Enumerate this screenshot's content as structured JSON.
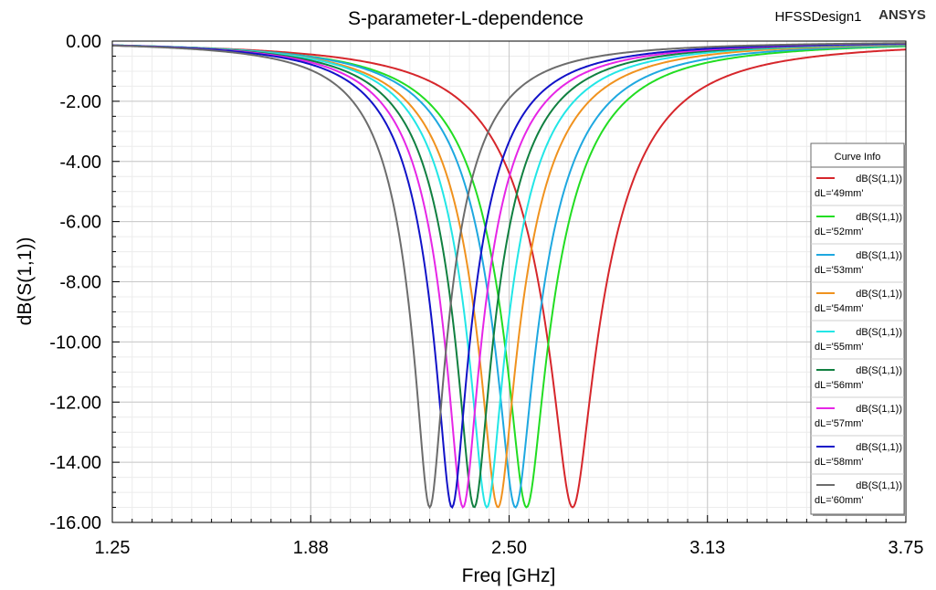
{
  "chart_data": {
    "type": "line",
    "title": "S-parameter-L-dependence",
    "design_label": "HFSSDesign1",
    "brand": "ANSYS",
    "xlabel": "Freq [GHz]",
    "ylabel": "dB(S(1,1))",
    "xlim": [
      1.25,
      3.75
    ],
    "ylim": [
      -16.0,
      0.0
    ],
    "x_ticks": [
      "1.25",
      "1.88",
      "2.50",
      "3.13",
      "3.75"
    ],
    "y_ticks": [
      "0.00",
      "-2.00",
      "-4.00",
      "-6.00",
      "-8.00",
      "-10.00",
      "-12.00",
      "-14.00",
      "-16.00"
    ],
    "grid": true,
    "legend": {
      "title": "Curve Info",
      "placement": "right"
    },
    "series": [
      {
        "name": "dB(S(1,1))",
        "param": "dL='49mm'",
        "color": "#d6262b",
        "min_freq": 2.7,
        "min_db": -15.5,
        "width": 0.275
      },
      {
        "name": "dB(S(1,1))",
        "param": "dL='52mm'",
        "color": "#22dd22",
        "min_freq": 2.555,
        "min_db": -15.5,
        "width": 0.245
      },
      {
        "name": "dB(S(1,1))",
        "param": "dL='53mm'",
        "color": "#1ea8e0",
        "min_freq": 2.52,
        "min_db": -15.5,
        "width": 0.235
      },
      {
        "name": "dB(S(1,1))",
        "param": "dL='54mm'",
        "color": "#f0921e",
        "min_freq": 2.465,
        "min_db": -15.5,
        "width": 0.225
      },
      {
        "name": "dB(S(1,1))",
        "param": "dL='55mm'",
        "color": "#22e6e6",
        "min_freq": 2.43,
        "min_db": -15.5,
        "width": 0.215
      },
      {
        "name": "dB(S(1,1))",
        "param": "dL='56mm'",
        "color": "#108040",
        "min_freq": 2.39,
        "min_db": -15.5,
        "width": 0.21
      },
      {
        "name": "dB(S(1,1))",
        "param": "dL='57mm'",
        "color": "#e626e6",
        "min_freq": 2.355,
        "min_db": -15.5,
        "width": 0.205
      },
      {
        "name": "dB(S(1,1))",
        "param": "dL='58mm'",
        "color": "#1212c8",
        "min_freq": 2.32,
        "min_db": -15.5,
        "width": 0.2
      },
      {
        "name": "dB(S(1,1))",
        "param": "dL='60mm'",
        "color": "#6c6c6c",
        "min_freq": 2.25,
        "min_db": -15.5,
        "width": 0.19
      }
    ]
  }
}
